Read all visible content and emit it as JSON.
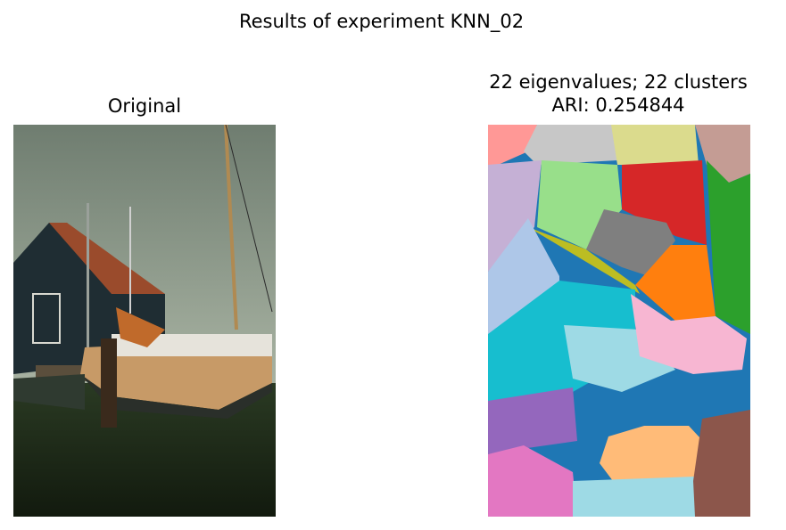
{
  "figure": {
    "suptitle": "Results of experiment KNN_02",
    "left_title": "Original",
    "right_title_line1": "22 eigenvalues; 22 clusters",
    "right_title_line2": "ARI: 0.254844"
  },
  "segmentation": {
    "eigenvalues": 22,
    "clusters": 22,
    "ari": 0.254844,
    "palette": [
      "#ff9896",
      "#c7c7c7",
      "#dbdb8d",
      "#c49c94",
      "#c5b0d5",
      "#98df8a",
      "#d62728",
      "#2ca02c",
      "#7f7f7f",
      "#bcbd22",
      "#aec7e8",
      "#ff7f0e",
      "#17becf",
      "#9edae5",
      "#f7b6d2",
      "#1f77b4",
      "#9467bd",
      "#ffbb78",
      "#e377c2",
      "#8c564b"
    ]
  }
}
